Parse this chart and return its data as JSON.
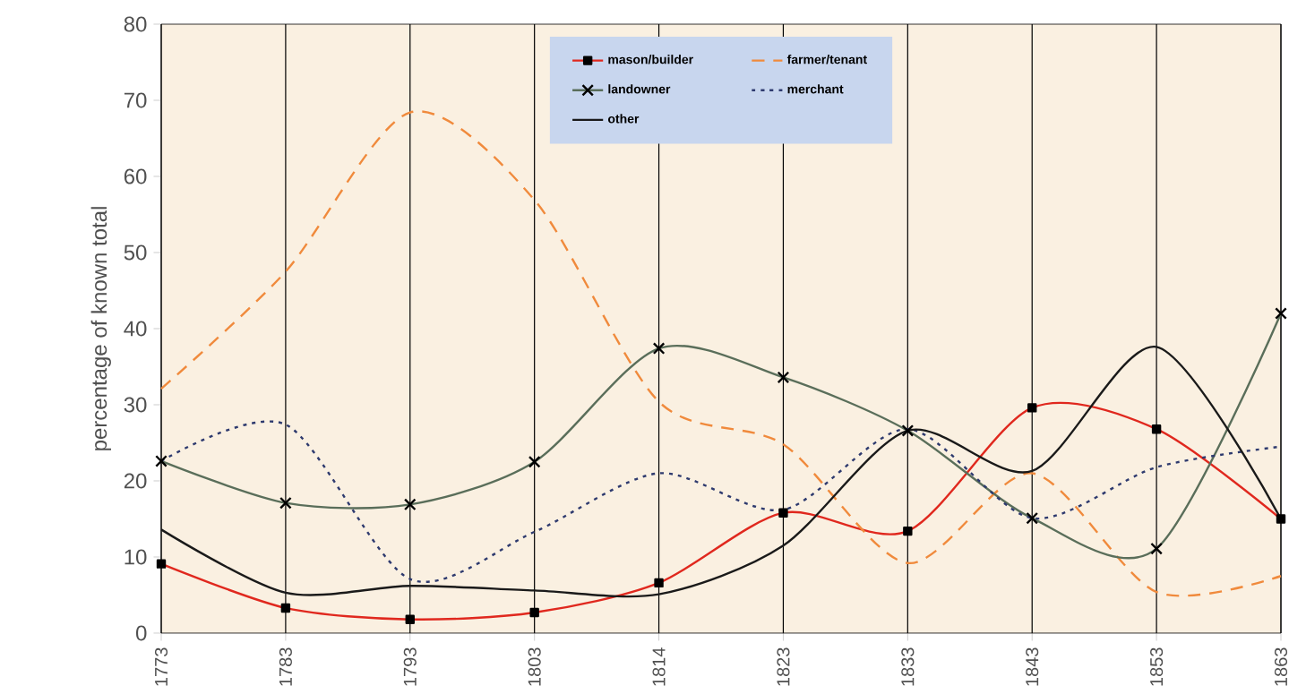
{
  "chart_data": {
    "type": "line",
    "ylabel": "percentage of known total",
    "categories": [
      "1773",
      "1783",
      "1793",
      "1803",
      "1814",
      "1823",
      "1833",
      "1843",
      "1853",
      "1863"
    ],
    "ylim": [
      0,
      80
    ],
    "yticks": [
      0,
      10,
      20,
      30,
      40,
      50,
      60,
      70,
      80
    ],
    "grid": "x",
    "legend": "top",
    "series": [
      {
        "name": "mason/builder",
        "color": "#e0281e",
        "marker": "square",
        "line_style": "solid",
        "values": [
          9.1,
          3.3,
          1.8,
          2.7,
          6.6,
          15.8,
          13.4,
          29.6,
          26.8,
          15
        ]
      },
      {
        "name": "farmer/tenant",
        "color": "#f08a3c",
        "marker": "none",
        "line_style": "dashed",
        "values": [
          32.1,
          47.5,
          68.4,
          56.9,
          30.4,
          24.8,
          9.2,
          21,
          5.4,
          7.5
        ]
      },
      {
        "name": "landowner",
        "color": "#5a6e5a",
        "marker": "cross",
        "line_style": "solid",
        "values": [
          22.6,
          17.1,
          16.9,
          22.5,
          37.4,
          33.6,
          26.6,
          15.1,
          11.1,
          42
        ]
      },
      {
        "name": "merchant",
        "color": "#2e3a6e",
        "marker": "none",
        "line_style": "dotted",
        "values": [
          22.6,
          27.4,
          7.1,
          13.3,
          21,
          16.2,
          26.8,
          15.1,
          21.8,
          24.5
        ]
      },
      {
        "name": "other",
        "color": "#1a1a1a",
        "marker": "none",
        "line_style": "solid",
        "values": [
          13.6,
          5.3,
          6.2,
          5.6,
          5.1,
          11.5,
          26.6,
          21.3,
          37.6,
          15
        ]
      }
    ]
  }
}
